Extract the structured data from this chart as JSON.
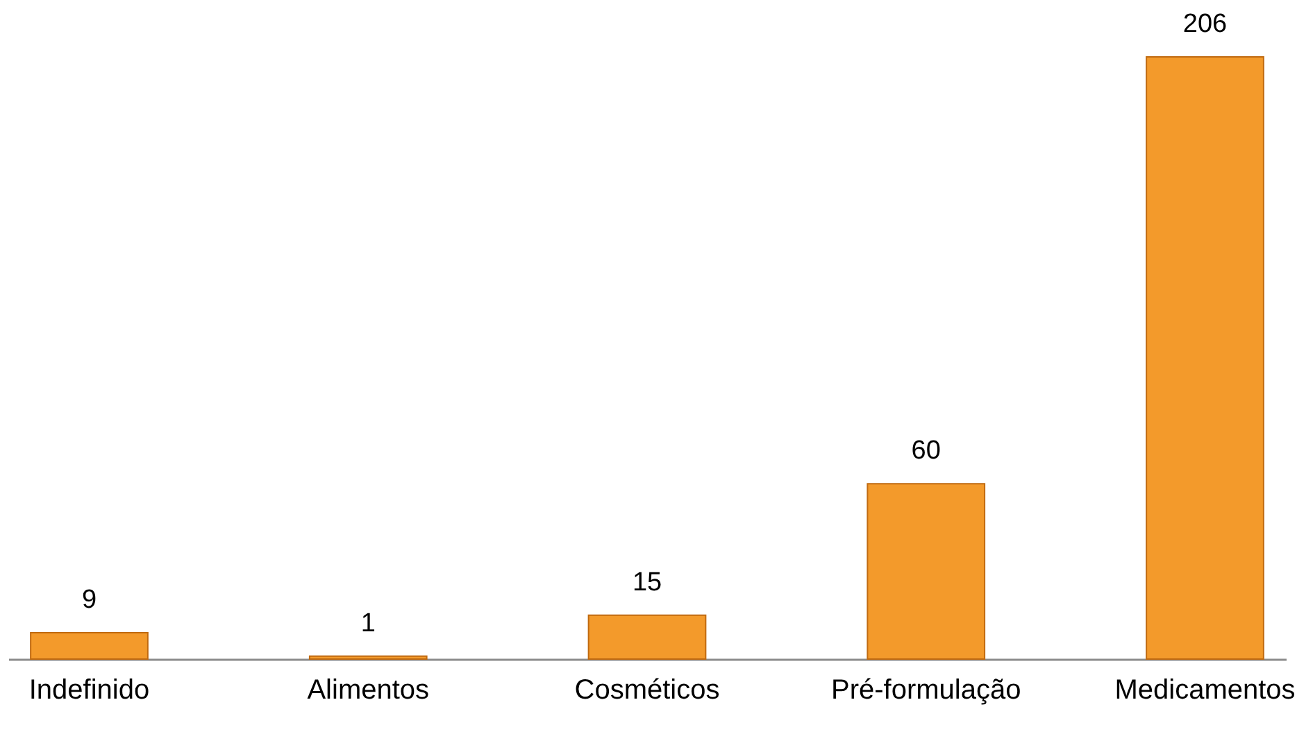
{
  "chart_data": {
    "type": "bar",
    "categories": [
      "Indefinido",
      "Alimentos",
      "Cosméticos",
      "Pré-formulação",
      "Medicamentos"
    ],
    "values": [
      9,
      1,
      15,
      60,
      206
    ],
    "color": "#f39a2b",
    "data_labels": true
  }
}
